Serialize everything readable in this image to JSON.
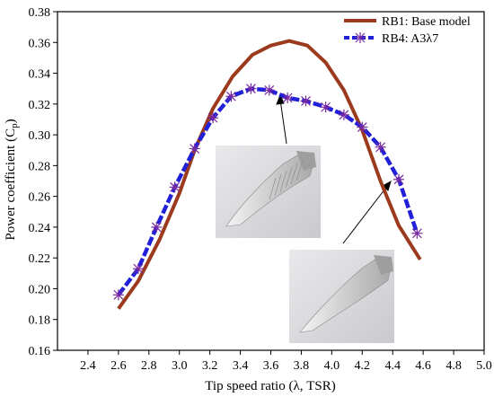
{
  "chart_data": {
    "type": "line",
    "xlabel": "Tip speed ratio (λ, TSR)",
    "ylabel": "Power coefficient (Cp)",
    "xlim": [
      2.2,
      5.0
    ],
    "ylim": [
      0.16,
      0.38
    ],
    "x_ticks": [
      "2.4",
      "2.6",
      "2.8",
      "3.0",
      "3.2",
      "3.4",
      "3.6",
      "3.8",
      "4.0",
      "4.2",
      "4.4",
      "4.6",
      "4.8",
      "5.0"
    ],
    "y_ticks": [
      "0.16",
      "0.18",
      "0.20",
      "0.22",
      "0.24",
      "0.26",
      "0.28",
      "0.30",
      "0.32",
      "0.34",
      "0.36",
      "0.38"
    ],
    "legend_position": "top-right",
    "series": [
      {
        "name": "RB1: Base model",
        "color": "#9b3a1d",
        "marker": "none",
        "x": [
          2.6,
          2.73,
          2.87,
          3.0,
          3.1,
          3.22,
          3.35,
          3.48,
          3.6,
          3.72,
          3.84,
          3.96,
          4.08,
          4.2,
          4.32,
          4.44,
          4.58
        ],
        "y": [
          0.187,
          0.205,
          0.232,
          0.262,
          0.29,
          0.317,
          0.338,
          0.352,
          0.358,
          0.361,
          0.358,
          0.347,
          0.329,
          0.303,
          0.27,
          0.241,
          0.219
        ]
      },
      {
        "name": "RB4: A3λ7",
        "color": "#2020d8",
        "marker": "asterisk",
        "x": [
          2.6,
          2.73,
          2.85,
          2.97,
          3.1,
          3.22,
          3.34,
          3.47,
          3.59,
          3.71,
          3.83,
          3.96,
          4.08,
          4.2,
          4.32,
          4.44,
          4.56
        ],
        "y": [
          0.196,
          0.213,
          0.24,
          0.266,
          0.291,
          0.311,
          0.325,
          0.33,
          0.329,
          0.324,
          0.322,
          0.318,
          0.313,
          0.305,
          0.292,
          0.271,
          0.236
        ]
      }
    ]
  }
}
